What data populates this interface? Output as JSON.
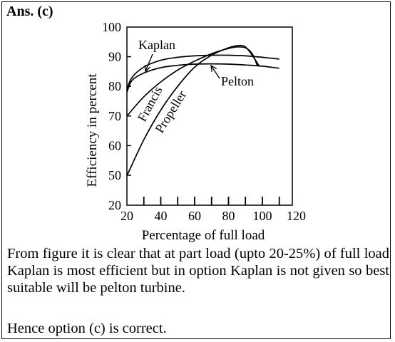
{
  "answer_label": "Ans. (c)",
  "explanation": "From figure it is clear that at part load (upto 20-25%) of full load Kaplan is most efficient but in option Kaplan is not given so best suitable will be pelton turbine.",
  "conclusion": "Hence option (c) is correct.",
  "chart_data": {
    "type": "line",
    "title": "",
    "xlabel": "Percentage of full load",
    "ylabel": "Efficiency in percent",
    "xlim": [
      20,
      120
    ],
    "ylim": [
      20,
      100
    ],
    "x_ticks": [
      20,
      40,
      60,
      80,
      100,
      120
    ],
    "y_ticks": [
      20,
      50,
      60,
      70,
      80,
      90,
      100
    ],
    "grid": false,
    "series": [
      {
        "name": "Kaplan",
        "x": [
          20,
          23,
          30,
          40,
          50,
          60,
          70,
          80,
          90,
          100,
          110
        ],
        "y": [
          79,
          83,
          86.5,
          88.8,
          89.8,
          90.3,
          90.5,
          90.5,
          90.3,
          89.8,
          89.2
        ]
      },
      {
        "name": "Pelton",
        "x": [
          20,
          23,
          30,
          40,
          50,
          60,
          70,
          80,
          90,
          100,
          110
        ],
        "y": [
          78,
          82,
          84.5,
          86.3,
          87.1,
          87.5,
          87.6,
          87.5,
          87.2,
          86.8,
          86.1
        ]
      },
      {
        "name": "Francis",
        "x": [
          20,
          30,
          40,
          50,
          60,
          70,
          80,
          85,
          90,
          94,
          97
        ],
        "y": [
          70,
          76.5,
          81.5,
          85.5,
          88.5,
          91,
          92.8,
          93.3,
          93,
          91,
          87
        ]
      },
      {
        "name": "Propeller",
        "x": [
          20,
          30,
          40,
          50,
          60,
          70,
          80,
          86,
          90,
          94,
          98
        ],
        "y": [
          49.5,
          62,
          72,
          80,
          86.5,
          90.5,
          93,
          93.8,
          93.3,
          90.5,
          87
        ]
      }
    ]
  }
}
